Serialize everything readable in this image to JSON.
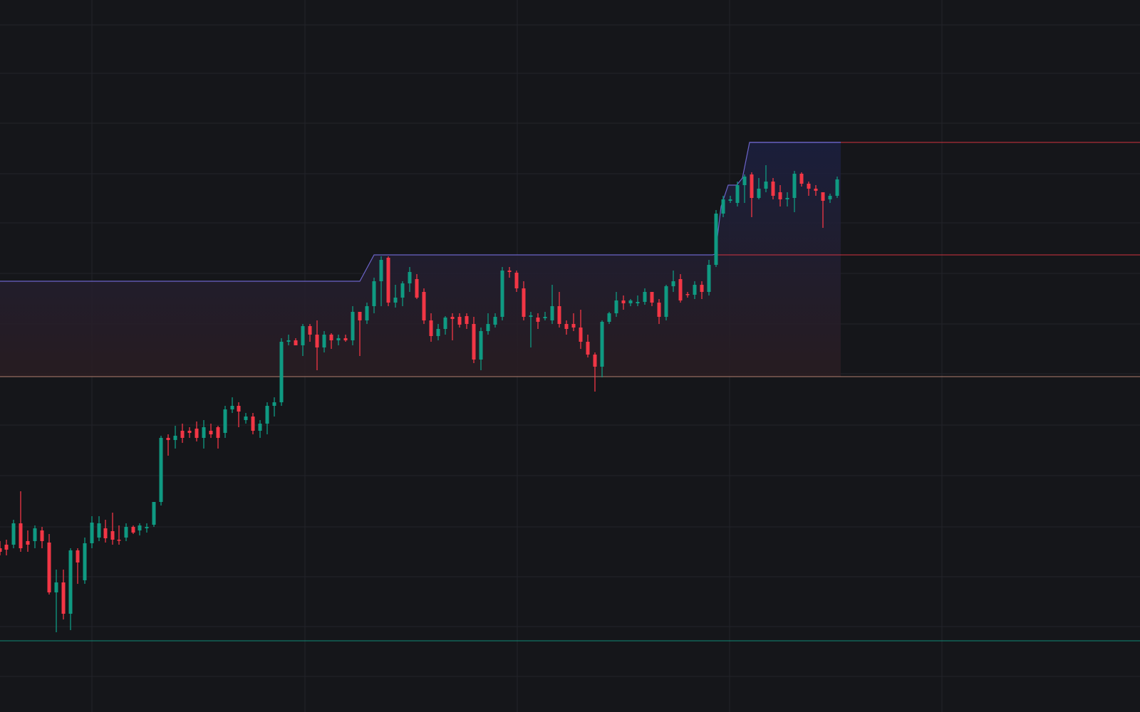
{
  "chart_data": {
    "type": "candlestick",
    "title": "",
    "grid": true,
    "colors": {
      "background": "#15161a",
      "grid": "#22242a",
      "up": "#0f9a82",
      "down": "#f23645",
      "fill_top": "#1b2040",
      "fill_bottom": "#2a1d22",
      "band_line": "#6b63c8",
      "resistance_line": "#f23645",
      "mid_line": "#c08a77",
      "support_line": "#109f88"
    },
    "y_range": [
      0,
      1000
    ],
    "levels": [
      {
        "name": "resistance-top",
        "value": 200
      },
      {
        "name": "resistance-mid",
        "value": 358
      },
      {
        "name": "range-mid",
        "value": 529
      },
      {
        "name": "support",
        "value": 900
      }
    ],
    "band": [
      [
        0,
        395
      ],
      [
        505,
        395
      ],
      [
        525,
        358
      ],
      [
        1000,
        358
      ],
      [
        1004,
        357
      ],
      [
        1012,
        290
      ],
      [
        1022,
        260
      ],
      [
        1034,
        260
      ],
      [
        1042,
        250
      ],
      [
        1052,
        200
      ],
      [
        1180,
        200
      ]
    ],
    "candles": [
      [
        0,
        770,
        775,
        760,
        780
      ],
      [
        9,
        765,
        772,
        758,
        780
      ],
      [
        19,
        765,
        735,
        730,
        770
      ],
      [
        29,
        735,
        770,
        690,
        775
      ],
      [
        39,
        760,
        765,
        745,
        775
      ],
      [
        49,
        760,
        742,
        738,
        770
      ],
      [
        59,
        745,
        760,
        740,
        770
      ],
      [
        69,
        762,
        832,
        750,
        835
      ],
      [
        79,
        832,
        818,
        800,
        888
      ],
      [
        89,
        818,
        862,
        800,
        870
      ],
      [
        99,
        862,
        773,
        770,
        885
      ],
      [
        109,
        773,
        790,
        770,
        820
      ],
      [
        119,
        815,
        763,
        755,
        820
      ],
      [
        129,
        763,
        734,
        725,
        770
      ],
      [
        139,
        755,
        735,
        725,
        760
      ],
      [
        148,
        742,
        756,
        730,
        762
      ],
      [
        158,
        746,
        758,
        720,
        765
      ],
      [
        167,
        758,
        758,
        738,
        765
      ],
      [
        177,
        755,
        740,
        735,
        760
      ],
      [
        187,
        740,
        748,
        738,
        750
      ],
      [
        196,
        745,
        738,
        735,
        752
      ],
      [
        206,
        742,
        740,
        735,
        748
      ],
      [
        216,
        737,
        705,
        705,
        740
      ],
      [
        226,
        705,
        615,
        612,
        710
      ],
      [
        236,
        615,
        618,
        610,
        640
      ],
      [
        246,
        618,
        612,
        598,
        630
      ],
      [
        256,
        605,
        615,
        595,
        622
      ],
      [
        266,
        605,
        608,
        600,
        615
      ],
      [
        276,
        602,
        615,
        592,
        620
      ],
      [
        286,
        615,
        600,
        590,
        630
      ],
      [
        296,
        605,
        610,
        595,
        615
      ],
      [
        306,
        600,
        615,
        598,
        630
      ],
      [
        316,
        608,
        575,
        570,
        615
      ],
      [
        326,
        575,
        570,
        558,
        580
      ],
      [
        335,
        570,
        578,
        565,
        600
      ],
      [
        345,
        590,
        585,
        580,
        595
      ],
      [
        355,
        585,
        605,
        580,
        610
      ],
      [
        365,
        605,
        595,
        590,
        615
      ],
      [
        375,
        595,
        570,
        565,
        610
      ],
      [
        385,
        570,
        565,
        558,
        585
      ],
      [
        395,
        565,
        480,
        475,
        570
      ],
      [
        405,
        480,
        478,
        470,
        485
      ],
      [
        415,
        478,
        485,
        475,
        480
      ],
      [
        425,
        485,
        458,
        455,
        500
      ],
      [
        435,
        458,
        470,
        455,
        480
      ],
      [
        445,
        470,
        488,
        450,
        520
      ],
      [
        455,
        488,
        470,
        465,
        495
      ],
      [
        465,
        470,
        478,
        468,
        490
      ],
      [
        475,
        478,
        475,
        470,
        485
      ],
      [
        485,
        475,
        478,
        470,
        480
      ],
      [
        495,
        478,
        438,
        430,
        485
      ],
      [
        505,
        438,
        450,
        440,
        500
      ],
      [
        515,
        450,
        430,
        425,
        455
      ],
      [
        525,
        430,
        395,
        390,
        440
      ],
      [
        535,
        395,
        365,
        360,
        430
      ],
      [
        545,
        362,
        425,
        360,
        430
      ],
      [
        555,
        425,
        418,
        400,
        432
      ],
      [
        565,
        418,
        398,
        395,
        430
      ],
      [
        575,
        398,
        382,
        375,
        410
      ],
      [
        585,
        392,
        418,
        385,
        420
      ],
      [
        595,
        410,
        450,
        405,
        455
      ],
      [
        605,
        450,
        472,
        440,
        480
      ],
      [
        615,
        472,
        462,
        455,
        478
      ],
      [
        625,
        462,
        446,
        444,
        470
      ],
      [
        635,
        445,
        448,
        440,
        478
      ],
      [
        645,
        445,
        456,
        440,
        460
      ],
      [
        655,
        444,
        455,
        440,
        462
      ],
      [
        665,
        455,
        505,
        445,
        510
      ],
      [
        675,
        505,
        465,
        460,
        520
      ],
      [
        685,
        465,
        455,
        440,
        470
      ],
      [
        695,
        456,
        445,
        440,
        460
      ],
      [
        705,
        445,
        380,
        375,
        450
      ],
      [
        715,
        380,
        382,
        375,
        390
      ],
      [
        725,
        383,
        405,
        380,
        410
      ],
      [
        735,
        405,
        445,
        395,
        450
      ],
      [
        745,
        445,
        443,
        438,
        488
      ],
      [
        755,
        446,
        452,
        440,
        462
      ],
      [
        765,
        447,
        445,
        438,
        450
      ],
      [
        775,
        450,
        430,
        400,
        455
      ],
      [
        785,
        430,
        455,
        410,
        460
      ],
      [
        795,
        455,
        462,
        450,
        470
      ],
      [
        805,
        455,
        460,
        440,
        465
      ],
      [
        815,
        460,
        480,
        435,
        490
      ],
      [
        825,
        480,
        498,
        470,
        502
      ],
      [
        835,
        498,
        515,
        495,
        550
      ],
      [
        845,
        515,
        452,
        450,
        530
      ],
      [
        855,
        452,
        440,
        438,
        455
      ],
      [
        865,
        440,
        422,
        410,
        445
      ],
      [
        875,
        422,
        426,
        415,
        435
      ],
      [
        885,
        426,
        422,
        420,
        430
      ],
      [
        895,
        426,
        424,
        415,
        430
      ],
      [
        905,
        424,
        410,
        405,
        428
      ],
      [
        915,
        410,
        425,
        410,
        430
      ],
      [
        925,
        425,
        445,
        420,
        455
      ],
      [
        935,
        445,
        402,
        400,
        450
      ],
      [
        945,
        402,
        395,
        380,
        410
      ],
      [
        955,
        392,
        422,
        385,
        425
      ],
      [
        965,
        413,
        414,
        410,
        418
      ],
      [
        975,
        414,
        400,
        395,
        420
      ],
      [
        985,
        400,
        410,
        395,
        420
      ],
      [
        995,
        410,
        372,
        365,
        415
      ],
      [
        1005,
        372,
        300,
        295,
        375
      ],
      [
        1015,
        300,
        280,
        275,
        305
      ],
      [
        1025,
        282,
        280,
        275,
        285
      ],
      [
        1035,
        285,
        260,
        255,
        290
      ],
      [
        1045,
        260,
        248,
        245,
        285
      ],
      [
        1055,
        245,
        278,
        242,
        305
      ],
      [
        1065,
        278,
        265,
        250,
        280
      ],
      [
        1075,
        265,
        255,
        232,
        270
      ],
      [
        1085,
        255,
        275,
        250,
        280
      ],
      [
        1095,
        270,
        280,
        260,
        290
      ],
      [
        1105,
        280,
        278,
        270,
        290
      ],
      [
        1115,
        278,
        244,
        240,
        298
      ],
      [
        1125,
        244,
        258,
        242,
        262
      ],
      [
        1135,
        258,
        265,
        255,
        275
      ],
      [
        1145,
        265,
        268,
        260,
        275
      ],
      [
        1155,
        270,
        282,
        270,
        320
      ],
      [
        1165,
        280,
        275,
        272,
        285
      ],
      [
        1175,
        275,
        252,
        248,
        278
      ]
    ]
  }
}
